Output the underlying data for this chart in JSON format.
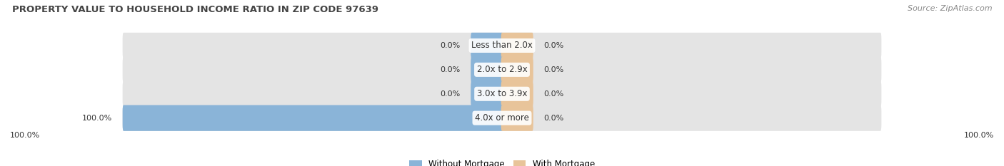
{
  "title": "PROPERTY VALUE TO HOUSEHOLD INCOME RATIO IN ZIP CODE 97639",
  "source": "Source: ZipAtlas.com",
  "categories": [
    "Less than 2.0x",
    "2.0x to 2.9x",
    "3.0x to 3.9x",
    "4.0x or more"
  ],
  "without_mortgage": [
    0.0,
    0.0,
    0.0,
    100.0
  ],
  "with_mortgage": [
    0.0,
    0.0,
    0.0,
    0.0
  ],
  "color_without": "#8ab4d8",
  "color_with": "#e8c49a",
  "bar_bg_color": "#e4e4e4",
  "title_color": "#444444",
  "source_color": "#888888",
  "label_color": "#333333",
  "figsize": [
    14.06,
    2.33
  ],
  "dpi": 100,
  "bottom_left_label": "100.0%",
  "bottom_right_label": "100.0%"
}
